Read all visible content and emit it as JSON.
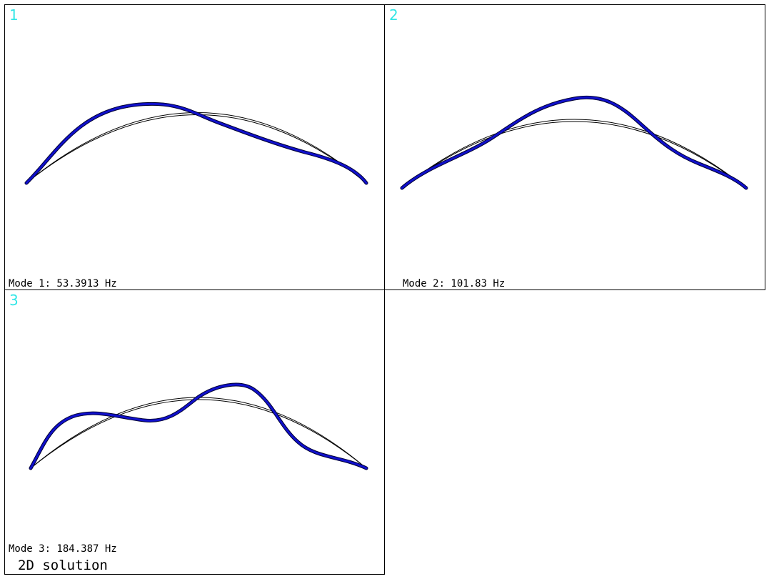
{
  "colors": {
    "panel_number": "#33e6e6",
    "mode_shape": "#1010cc",
    "mode_shape_edge": "#000033",
    "undeformed": "#000000",
    "frame": "#000000",
    "background": "#ffffff"
  },
  "panels": [
    {
      "number": "1",
      "mode_label": "Mode 1: 53.3913 Hz"
    },
    {
      "number": "2",
      "mode_label": "Mode 2: 101.83 Hz"
    },
    {
      "number": "3",
      "mode_label": "Mode 3: 184.387 Hz"
    }
  ],
  "footer": {
    "label": "2D solution"
  }
}
